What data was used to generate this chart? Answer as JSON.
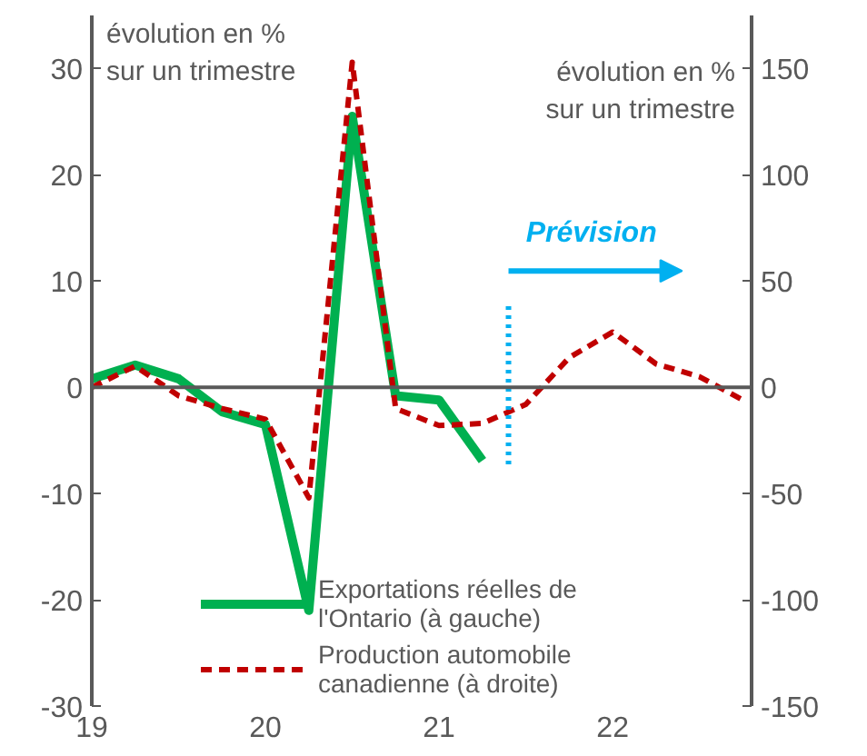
{
  "chart_data": {
    "type": "line",
    "ylabel": "évolution en %\nsur un trimestre",
    "y2label": "évolution en %\nsur un trimestre",
    "xlim": [
      19,
      22.8
    ],
    "xticks": [
      19,
      20,
      21,
      22
    ],
    "ylim": [
      -30,
      35
    ],
    "yticks": [
      -30,
      -20,
      -10,
      0,
      10,
      20,
      30
    ],
    "y2lim": [
      -150,
      175
    ],
    "y2ticks": [
      -150,
      -100,
      -50,
      0,
      50,
      100,
      150
    ],
    "series": [
      {
        "name": "Exportations réelles de\nl'Ontario (à gauche)",
        "color": "#00b050",
        "line_style": "solid",
        "x": [
          19,
          19.25,
          19.5,
          19.75,
          20,
          20.25,
          20.5,
          20.75,
          21,
          21.25
        ],
        "values": [
          0.8,
          2.1,
          0.8,
          -2.3,
          -3.5,
          -21,
          25.5,
          -0.8,
          -1.2,
          -6.9
        ]
      },
      {
        "name": "Production automobile\ncanadienne (à droite)",
        "color": "#c00000",
        "line_style": "dashed",
        "axis": "y2",
        "x": [
          19,
          19.25,
          19.5,
          19.75,
          20,
          20.25,
          20.5,
          20.75,
          21,
          21.25,
          21.5,
          21.75,
          22,
          22.25,
          22.5,
          22.75
        ],
        "values": [
          0,
          10,
          -4,
          -10,
          -15,
          -52,
          153,
          -10,
          -18,
          -17,
          -8,
          14,
          26,
          11,
          5,
          -6
        ]
      }
    ],
    "ref_lines": [
      {
        "axis": "y",
        "value": 0,
        "color": "#595959",
        "line_style": "solid"
      },
      {
        "axis": "x",
        "value": 21.4,
        "label": "Prévision",
        "color": "#00b0f0",
        "line_style": "dotted"
      }
    ],
    "grid": false,
    "legend": "bottom",
    "marker": "none"
  }
}
